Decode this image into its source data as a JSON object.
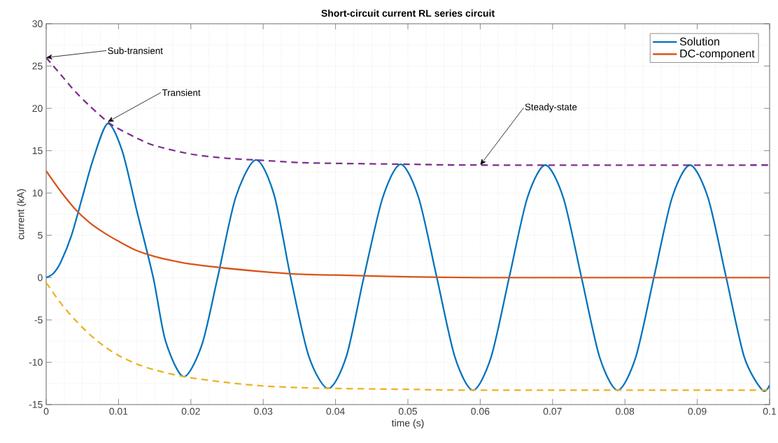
{
  "chart_data": {
    "type": "line",
    "title": "Short-circuit current RL series circuit",
    "xlabel": "time (s)",
    "ylabel": "current (kA)",
    "xlim": [
      0,
      0.1
    ],
    "ylim": [
      -15,
      30
    ],
    "xticks": [
      0,
      0.01,
      0.02,
      0.03,
      0.04,
      0.05,
      0.06,
      0.07,
      0.08,
      0.09,
      0.1
    ],
    "yticks": [
      -15,
      -10,
      -5,
      0,
      5,
      10,
      15,
      20,
      25,
      30
    ],
    "grid": true,
    "legend": "top right",
    "marker": "none",
    "line_style": "solid",
    "series": [
      {
        "name": "Solution",
        "color": "#0072bd",
        "x": [
          0,
          0.001,
          0.002,
          0.0035,
          0.005,
          0.0065,
          0.0085,
          0.0105,
          0.0125,
          0.0148,
          0.0165,
          0.019,
          0.0215,
          0.0237,
          0.0262,
          0.029,
          0.0315,
          0.0338,
          0.0363,
          0.039,
          0.0415,
          0.0439,
          0.0465,
          0.049,
          0.0515,
          0.054,
          0.0565,
          0.059,
          0.0615,
          0.064,
          0.0665,
          0.069,
          0.0715,
          0.074,
          0.0765,
          0.079,
          0.0815,
          0.084,
          0.0865,
          0.089,
          0.0915,
          0.094,
          0.0965,
          0.099,
          0.1
        ],
        "values": [
          0,
          0.5,
          1.8,
          5,
          9.5,
          14,
          18.2,
          15,
          8,
          0,
          -7.5,
          -11.7,
          -8,
          0,
          9.5,
          13.9,
          9.8,
          0,
          -9.3,
          -13.1,
          -9.3,
          0,
          9.4,
          13.4,
          9.4,
          0,
          -9.4,
          -13.3,
          -9.4,
          0,
          9.4,
          13.3,
          9.4,
          0,
          -9.4,
          -13.3,
          -9.4,
          0,
          9.4,
          13.3,
          9.4,
          0,
          -9.4,
          -13.3,
          -12.7
        ]
      },
      {
        "name": "DC-component",
        "color": "#d95319",
        "x": [
          0,
          0.002,
          0.004,
          0.006,
          0.008,
          0.01,
          0.0125,
          0.015,
          0.0175,
          0.02,
          0.025,
          0.03,
          0.035,
          0.04,
          0.05,
          0.06,
          0.07,
          0.1
        ],
        "values": [
          12.6,
          10.2,
          8.1,
          6.5,
          5.3,
          4.3,
          3.2,
          2.5,
          2.0,
          1.6,
          1.1,
          0.7,
          0.4,
          0.3,
          0.1,
          0,
          0,
          0
        ]
      },
      {
        "color": "#7e2f8e",
        "line_style": "dashed",
        "x": [
          0,
          0.002,
          0.004,
          0.006,
          0.0085,
          0.01,
          0.0125,
          0.015,
          0.02,
          0.025,
          0.029,
          0.035,
          0.04,
          0.05,
          0.06,
          0.1
        ],
        "values": [
          26,
          24,
          22,
          20.3,
          18.4,
          17.6,
          16.5,
          15.6,
          14.6,
          14.1,
          13.9,
          13.6,
          13.5,
          13.4,
          13.3,
          13.3
        ]
      },
      {
        "color": "#edb120",
        "line_style": "dashed",
        "x": [
          0,
          0.002,
          0.004,
          0.006,
          0.008,
          0.01,
          0.0125,
          0.015,
          0.019,
          0.025,
          0.03,
          0.035,
          0.04,
          0.05,
          0.06,
          0.1
        ],
        "values": [
          -0.6,
          -3,
          -5,
          -6.7,
          -8.1,
          -9.2,
          -10.2,
          -10.9,
          -11.7,
          -12.4,
          -12.8,
          -13,
          -13.1,
          -13.2,
          -13.3,
          -13.3
        ]
      }
    ],
    "annotations": [
      {
        "text": "Sub-transient",
        "x": 0,
        "y": 26
      },
      {
        "text": "Transient",
        "x": 0.0085,
        "y": 18.4
      },
      {
        "text": "Steady-state",
        "x": 0.06,
        "y": 13.3
      }
    ]
  }
}
